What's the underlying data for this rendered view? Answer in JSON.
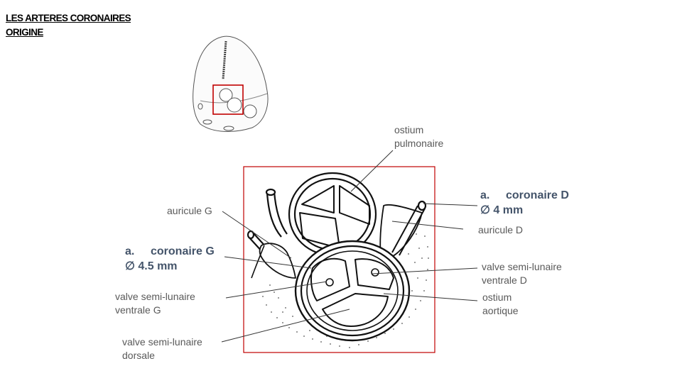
{
  "header": {
    "title_line1": "LES ARTERES CORONAIRES",
    "title_line2": "ORIGINE"
  },
  "labels": {
    "ostium_pulmonaire": [
      "ostium",
      "pulmonaire"
    ],
    "auricule_g": "auricule G",
    "auricule_d": "auricule D",
    "coronaire_d": {
      "num": "a.",
      "name": "coronaire D",
      "diam": "∅ 4 mm"
    },
    "coronaire_g": {
      "num": "a.",
      "name": "coronaire G",
      "diam": "∅ 4.5 mm"
    },
    "valve_ventrale_d": [
      "valve semi-lunaire",
      "ventrale D"
    ],
    "valve_ventrale_g": [
      "valve semi-lunaire",
      "ventrale G"
    ],
    "valve_dorsale": [
      "valve semi-lunaire",
      "dorsale"
    ],
    "ostium_aortique": [
      "ostium",
      "aortique"
    ]
  },
  "colors": {
    "frame": "#c00000",
    "label": "#595959",
    "emphasis": "#44546a"
  }
}
